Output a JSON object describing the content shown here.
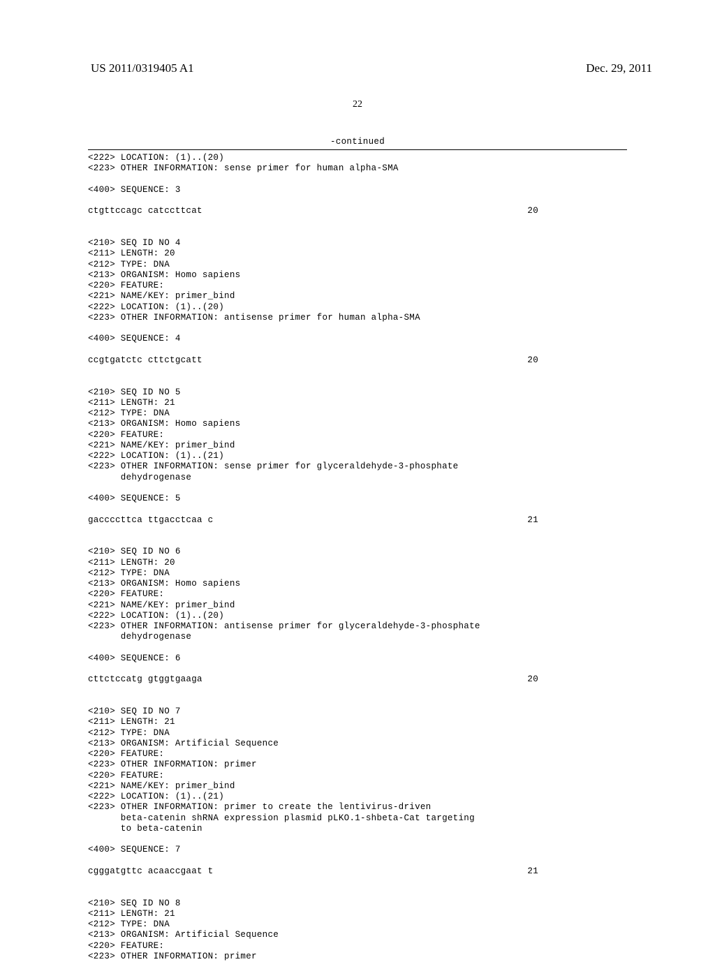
{
  "header": {
    "pub_number": "US 2011/0319405 A1",
    "pub_date": "Dec. 29, 2011"
  },
  "page_number": "22",
  "continued_label": "-continued",
  "entries": [
    {
      "lines": [
        "<222> LOCATION: (1)..(20)",
        "<223> OTHER INFORMATION: sense primer for human alpha-SMA"
      ],
      "seq_label": "<400> SEQUENCE: 3",
      "seq": "ctgttccagc catccttcat",
      "seq_len": "20"
    },
    {
      "lines": [
        "<210> SEQ ID NO 4",
        "<211> LENGTH: 20",
        "<212> TYPE: DNA",
        "<213> ORGANISM: Homo sapiens",
        "<220> FEATURE:",
        "<221> NAME/KEY: primer_bind",
        "<222> LOCATION: (1)..(20)",
        "<223> OTHER INFORMATION: antisense primer for human alpha-SMA"
      ],
      "seq_label": "<400> SEQUENCE: 4",
      "seq": "ccgtgatctc cttctgcatt",
      "seq_len": "20"
    },
    {
      "lines": [
        "<210> SEQ ID NO 5",
        "<211> LENGTH: 21",
        "<212> TYPE: DNA",
        "<213> ORGANISM: Homo sapiens",
        "<220> FEATURE:",
        "<221> NAME/KEY: primer_bind",
        "<222> LOCATION: (1)..(21)",
        "<223> OTHER INFORMATION: sense primer for glyceraldehyde-3-phosphate",
        "      dehydrogenase"
      ],
      "seq_label": "<400> SEQUENCE: 5",
      "seq": "gaccccttca ttgacctcaa c",
      "seq_len": "21"
    },
    {
      "lines": [
        "<210> SEQ ID NO 6",
        "<211> LENGTH: 20",
        "<212> TYPE: DNA",
        "<213> ORGANISM: Homo sapiens",
        "<220> FEATURE:",
        "<221> NAME/KEY: primer_bind",
        "<222> LOCATION: (1)..(20)",
        "<223> OTHER INFORMATION: antisense primer for glyceraldehyde-3-phosphate",
        "      dehydrogenase"
      ],
      "seq_label": "<400> SEQUENCE: 6",
      "seq": "cttctccatg gtggtgaaga",
      "seq_len": "20"
    },
    {
      "lines": [
        "<210> SEQ ID NO 7",
        "<211> LENGTH: 21",
        "<212> TYPE: DNA",
        "<213> ORGANISM: Artificial Sequence",
        "<220> FEATURE:",
        "<223> OTHER INFORMATION: primer",
        "<220> FEATURE:",
        "<221> NAME/KEY: primer_bind",
        "<222> LOCATION: (1)..(21)",
        "<223> OTHER INFORMATION: primer to create the lentivirus-driven",
        "      beta-catenin shRNA expression plasmid pLKO.1-shbeta-Cat targeting",
        "      to beta-catenin"
      ],
      "seq_label": "<400> SEQUENCE: 7",
      "seq": "cgggatgttc acaaccgaat t",
      "seq_len": "21"
    },
    {
      "lines": [
        "<210> SEQ ID NO 8",
        "<211> LENGTH: 21",
        "<212> TYPE: DNA",
        "<213> ORGANISM: Artificial Sequence",
        "<220> FEATURE:",
        "<223> OTHER INFORMATION: primer"
      ]
    }
  ]
}
